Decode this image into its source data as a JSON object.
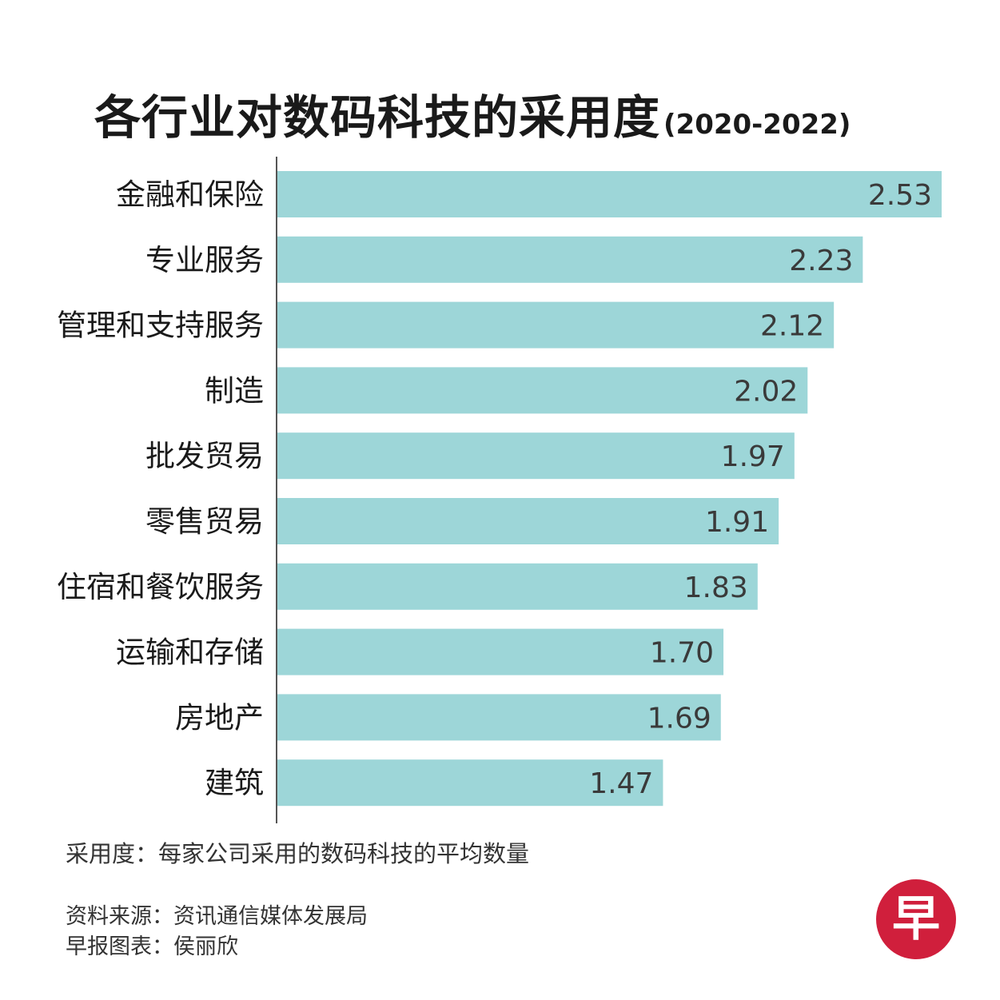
{
  "title": "各行业对数码科技的采用度",
  "subtitle": "(2020-2022)",
  "chart_data": {
    "type": "bar",
    "orientation": "horizontal",
    "categories": [
      "金融和保险",
      "专业服务",
      "管理和支持服务",
      "制造",
      "批发贸易",
      "零售贸易",
      "住宿和餐饮服务",
      "运输和存储",
      "房地产",
      "建筑"
    ],
    "values": [
      2.53,
      2.23,
      2.12,
      2.02,
      1.97,
      1.91,
      1.83,
      1.7,
      1.69,
      1.47
    ],
    "value_labels": [
      "2.53",
      "2.23",
      "2.12",
      "2.02",
      "1.97",
      "1.91",
      "1.83",
      "1.70",
      "1.69",
      "1.47"
    ],
    "xlim": [
      0,
      2.53
    ],
    "grid": false,
    "bar_color": "#9dd6d8",
    "label_color": "#3a3a3a"
  },
  "note": "采用度：每家公司采用的数码科技的平均数量",
  "source": "资料来源：资讯通信媒体发展局",
  "credit": "早报图表：侯丽欣",
  "logo": {
    "icon": "zaobao-logo",
    "char": "早",
    "color": "#d01f3c"
  }
}
